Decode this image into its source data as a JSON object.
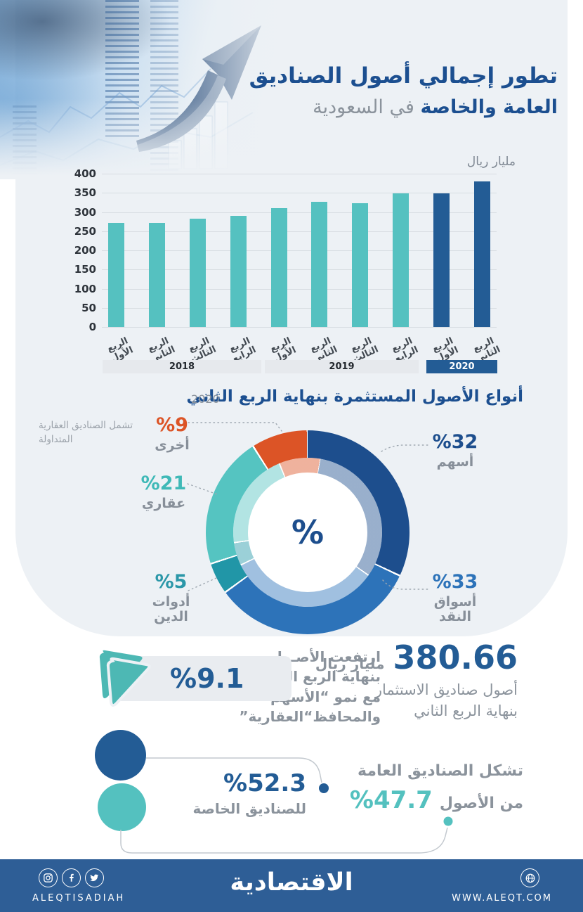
{
  "header": {
    "title_bold1": "تطور إجمالي أصول الصناديق",
    "title_bold2": "العامة والخاصة",
    "title_gray": "في السعودية"
  },
  "chart_data": [
    {
      "type": "bar",
      "title": "تطور إجمالي أصول الصناديق العامة والخاصة في السعودية",
      "unit": "مليار ريال",
      "ylim": [
        0,
        400
      ],
      "yticks": [
        0,
        50,
        100,
        150,
        200,
        250,
        300,
        350,
        400
      ],
      "grid": true,
      "categories": [
        "الربع الأول",
        "الربع الثاني",
        "الربع الثالث",
        "الربع الرابع",
        "الربع الأول",
        "الربع الثاني",
        "الربع الثالث",
        "الربع الرابع",
        "الربع الأول",
        "الربع الثاني"
      ],
      "values": [
        271,
        271,
        283,
        290,
        310,
        326,
        323,
        349,
        349,
        380.66
      ],
      "year_groups": [
        {
          "label": "2018",
          "quarters": 4,
          "highlight": false
        },
        {
          "label": "2019",
          "quarters": 4,
          "highlight": false
        },
        {
          "label": "2020",
          "quarters": 2,
          "highlight": true
        }
      ],
      "colors": {
        "default": "#55c1c0",
        "highlight": "#235c95"
      }
    },
    {
      "type": "pie",
      "title": "أنواع الأصول المستثمرة بنهاية الربع الثاني",
      "subtitle": "2020",
      "center_label": "%",
      "slices": [
        {
          "label": "أسهم",
          "value": 32,
          "color": "#1d4e8d"
        },
        {
          "label": "أسواق النقد",
          "value": 33,
          "color": "#2d73b9"
        },
        {
          "label": "أدوات الدين",
          "value": 5,
          "color": "#2196a7"
        },
        {
          "label": "عقاري",
          "value": 21,
          "color": "#55c4c1"
        },
        {
          "label": "أخرى",
          "value": 9,
          "color": "#dc5426",
          "note": "تشمل الصناديق العقارية المتداولة"
        }
      ]
    }
  ],
  "highlights": {
    "assets": {
      "value": "380.66",
      "unit": "مليار ريال",
      "line1": "أصول صناديق الاستثمار",
      "line2": "بنهاية الربع الثاني"
    },
    "growth": {
      "value": 9.1,
      "lines": [
        "ارتفعت الأصـول",
        "بنهاية الربع الثاني",
        "مع نمو “الأسهم”",
        "والمحافظ“العقارية”"
      ]
    },
    "split": {
      "private": {
        "value": 52.3,
        "label": "للصناديق الخاصة",
        "color": "#235c95"
      },
      "public": {
        "value": 47.7,
        "intro": "تشكل الصناديق العامة",
        "suffix": "من الأصول",
        "color": "#54c1bf"
      }
    }
  },
  "footer": {
    "brand": "الاقتصادية",
    "handle": "ALEQTISADIAH",
    "website": "WWW.ALEQT.COM",
    "background": "#2e5e96"
  }
}
